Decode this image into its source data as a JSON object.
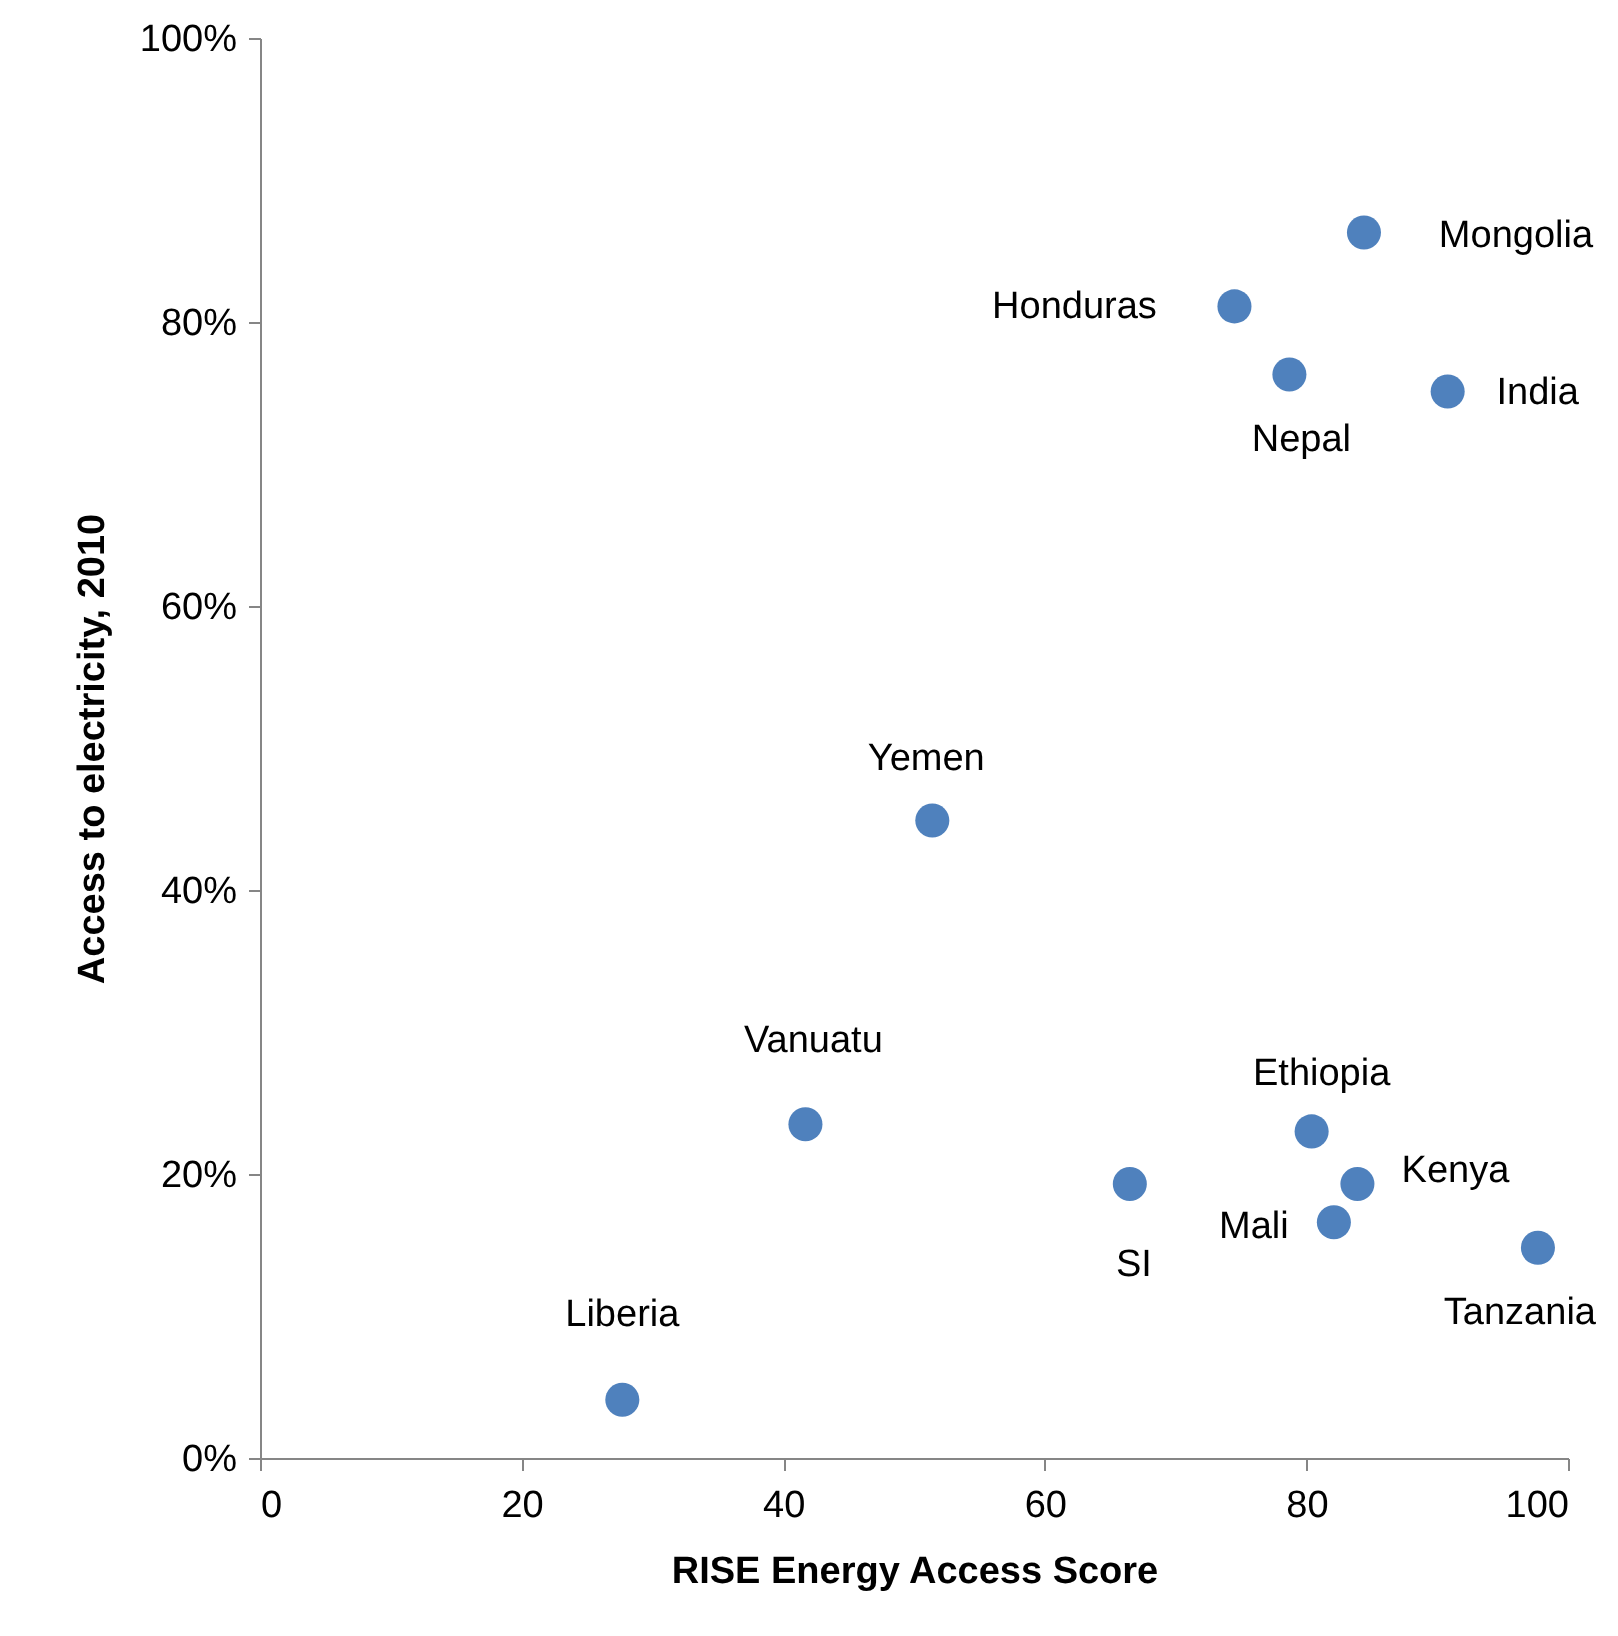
{
  "chart_data": {
    "type": "scatter",
    "xlabel": "RISE Energy Access Score",
    "ylabel": "Access to electricity, 2010",
    "x": [
      27.7,
      41.7,
      51.4,
      66.5,
      80.4,
      83.9,
      82.1,
      97.7,
      74.5,
      78.7,
      84.4,
      90.8
    ],
    "series": [
      {
        "color": "#4f81bd",
        "values": [
          4.1,
          23.5,
          44.9,
          19.3,
          23.0,
          19.3,
          16.6,
          14.8,
          81.1,
          76.3,
          86.3,
          75.1
        ]
      }
    ],
    "xlim": [
      0,
      100
    ],
    "xticks": [
      0,
      20,
      40,
      60,
      80,
      100
    ],
    "ylim": [
      0,
      100
    ],
    "yticks": [
      {
        "value": 0,
        "label": "0%"
      },
      {
        "value": 20,
        "label": "20%"
      },
      {
        "value": 40,
        "label": "40%"
      },
      {
        "value": 60,
        "label": "60%"
      },
      {
        "value": 80,
        "label": "80%"
      },
      {
        "value": 100,
        "label": "100%"
      }
    ],
    "grid": false,
    "annotations": [
      {
        "text": "Liberia",
        "x": 27.7,
        "y": 4.1
      },
      {
        "text": "Vanuatu",
        "x": 41.7,
        "y": 23.5
      },
      {
        "text": "Yemen",
        "x": 51.4,
        "y": 44.9
      },
      {
        "text": "SI",
        "x": 66.5,
        "y": 19.3
      },
      {
        "text": "Ethiopia",
        "x": 80.4,
        "y": 23.0
      },
      {
        "text": "Kenya",
        "x": 83.9,
        "y": 19.3
      },
      {
        "text": "Mali",
        "x": 82.1,
        "y": 16.6
      },
      {
        "text": "Tanzania",
        "x": 97.7,
        "y": 14.8
      },
      {
        "text": "Honduras",
        "x": 74.5,
        "y": 81.1
      },
      {
        "text": "Nepal",
        "x": 78.7,
        "y": 76.3
      },
      {
        "text": "Mongolia",
        "x": 84.4,
        "y": 86.3
      },
      {
        "text": "India",
        "x": 90.8,
        "y": 75.1
      }
    ]
  }
}
